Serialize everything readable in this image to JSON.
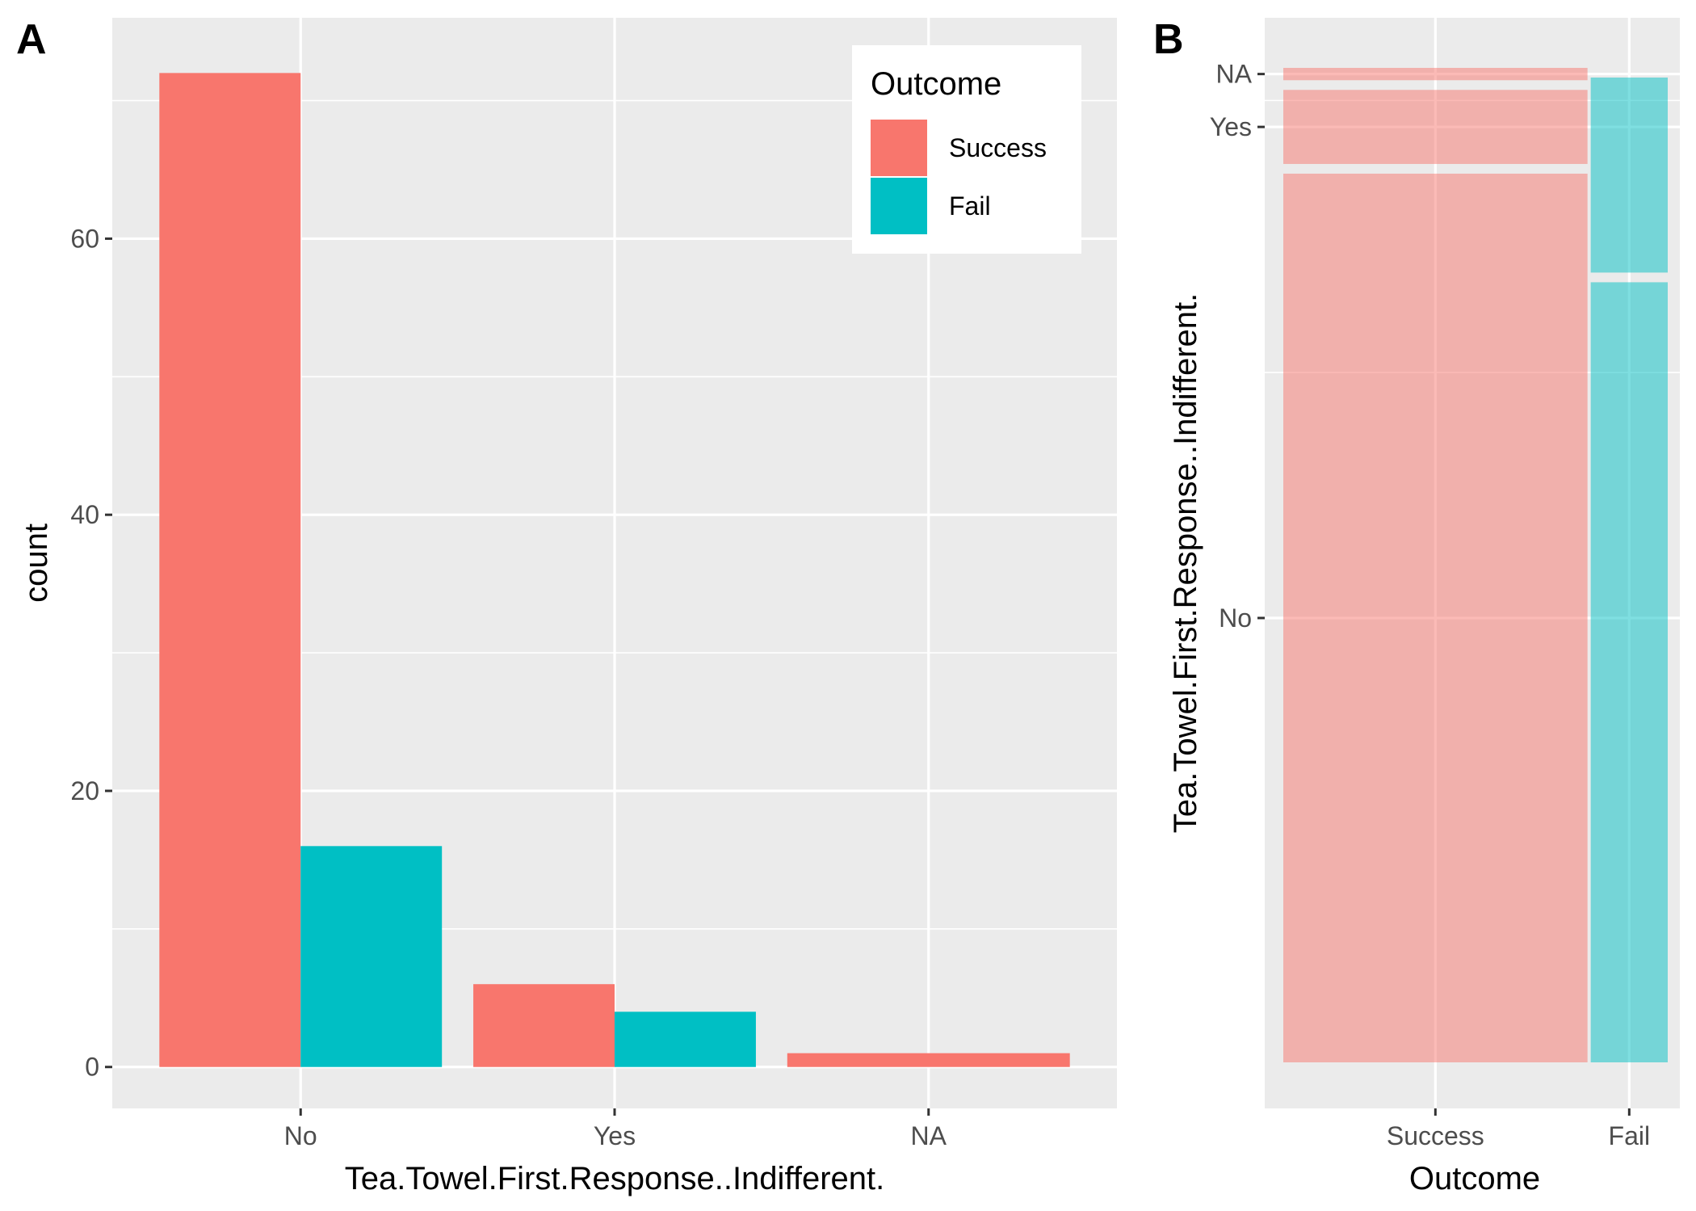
{
  "colors": {
    "success": "#f8766d",
    "fail": "#00bfc4",
    "panel_bg": "#ebebeb"
  },
  "chart_data": [
    {
      "type": "bar",
      "panel_label": "A",
      "categories": [
        "No",
        "Yes",
        "NA"
      ],
      "series": [
        {
          "name": "Success",
          "values": [
            72,
            6,
            1
          ]
        },
        {
          "name": "Fail",
          "values": [
            16,
            4,
            0
          ]
        }
      ],
      "xlabel": "Tea.Towel.First.Response..Indifferent.",
      "ylabel": "count",
      "ylim": [
        -3,
        76
      ],
      "yticks": [
        0,
        20,
        40,
        60
      ],
      "legend": {
        "title": "Outcome",
        "position": "top-right",
        "entries": [
          "Success",
          "Fail"
        ]
      },
      "grid": true
    },
    {
      "type": "mosaic",
      "panel_label": "B",
      "x_categories": [
        "Success",
        "Fail"
      ],
      "y_categories": [
        "No",
        "Yes",
        "NA"
      ],
      "counts": {
        "Success": {
          "No": 72,
          "Yes": 6,
          "NA": 1
        },
        "Fail": {
          "No": 16,
          "Yes": 4,
          "NA": 0
        }
      },
      "xlabel": "Outcome",
      "ylabel": "Tea.Towel.First.Response..Indifferent.",
      "grid": true
    }
  ]
}
